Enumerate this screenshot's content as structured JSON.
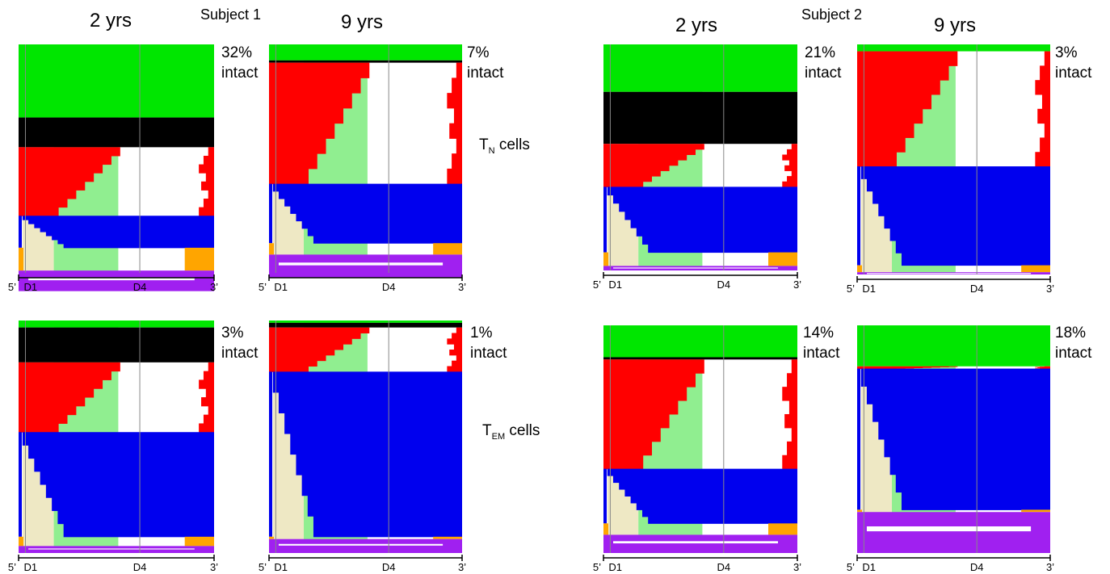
{
  "subject_labels": [
    "Subject 1",
    "Subject 2"
  ],
  "timepoint_labels": [
    "2 yrs",
    "9 yrs",
    "2 yrs",
    "9 yrs"
  ],
  "cell_type_rows": [
    {
      "main": "T",
      "sub": "N",
      "suffix": "cells"
    },
    {
      "main": "T",
      "sub": "EM",
      "suffix": "cells"
    }
  ],
  "intact_word": "intact",
  "axis_labels": {
    "start": "5’",
    "d1": "D1",
    "d4": "D4",
    "end": "3’"
  },
  "legend_colors": {
    "intact": "#00e600",
    "black": "#000000",
    "red": "#ff0000",
    "blue": "#0000ee",
    "orange": "#ffa500",
    "purple": "#a020f0",
    "tan_region": "#eee8c4",
    "green_region": "#90ee90"
  },
  "chart_data": [
    {
      "type": "stacked-genome-map",
      "subject": "Subject 1",
      "timepoint": "2 yrs",
      "cell_type": "TN",
      "intact_percent": "32%",
      "categories": [
        "intact",
        "black",
        "red",
        "blue",
        "orange",
        "purple"
      ],
      "proportions": [
        0.32,
        0.13,
        0.3,
        0.14,
        0.1,
        0.09
      ]
    },
    {
      "type": "stacked-genome-map",
      "subject": "Subject 1",
      "timepoint": "9 yrs",
      "cell_type": "TN",
      "intact_percent": "7%",
      "categories": [
        "intact",
        "black",
        "red",
        "blue",
        "orange",
        "purple"
      ],
      "proportions": [
        0.07,
        0.01,
        0.53,
        0.26,
        0.05,
        0.1
      ]
    },
    {
      "type": "stacked-genome-map",
      "subject": "Subject 2",
      "timepoint": "2 yrs",
      "cell_type": "TN",
      "intact_percent": "21%",
      "categories": [
        "intact",
        "black",
        "red",
        "blue",
        "orange",
        "purple"
      ],
      "proportions": [
        0.21,
        0.23,
        0.19,
        0.29,
        0.06,
        0.02
      ]
    },
    {
      "type": "stacked-genome-map",
      "subject": "Subject 2",
      "timepoint": "9 yrs",
      "cell_type": "TN",
      "intact_percent": "3%",
      "categories": [
        "intact",
        "black",
        "red",
        "blue",
        "orange",
        "purple"
      ],
      "proportions": [
        0.03,
        0.0,
        0.5,
        0.43,
        0.03,
        0.01
      ]
    },
    {
      "type": "stacked-genome-map",
      "subject": "Subject 1",
      "timepoint": "2 yrs",
      "cell_type": "TEM",
      "intact_percent": "3%",
      "categories": [
        "intact",
        "black",
        "red",
        "blue",
        "orange",
        "purple"
      ],
      "proportions": [
        0.03,
        0.15,
        0.3,
        0.45,
        0.04,
        0.03
      ]
    },
    {
      "type": "stacked-genome-map",
      "subject": "Subject 1",
      "timepoint": "9 yrs",
      "cell_type": "TEM",
      "intact_percent": "1%",
      "categories": [
        "intact",
        "black",
        "red",
        "blue",
        "orange",
        "purple"
      ],
      "proportions": [
        0.01,
        0.02,
        0.19,
        0.71,
        0.01,
        0.06
      ]
    },
    {
      "type": "stacked-genome-map",
      "subject": "Subject 2",
      "timepoint": "2 yrs",
      "cell_type": "TEM",
      "intact_percent": "14%",
      "categories": [
        "intact",
        "black",
        "red",
        "blue",
        "orange",
        "purple"
      ],
      "proportions": [
        0.14,
        0.01,
        0.48,
        0.24,
        0.05,
        0.08
      ]
    },
    {
      "type": "stacked-genome-map",
      "subject": "Subject 2",
      "timepoint": "9 yrs",
      "cell_type": "TEM",
      "intact_percent": "18%",
      "categories": [
        "intact",
        "black",
        "red",
        "blue",
        "orange",
        "purple"
      ],
      "proportions": [
        0.18,
        0.0,
        0.01,
        0.62,
        0.01,
        0.18
      ]
    }
  ]
}
